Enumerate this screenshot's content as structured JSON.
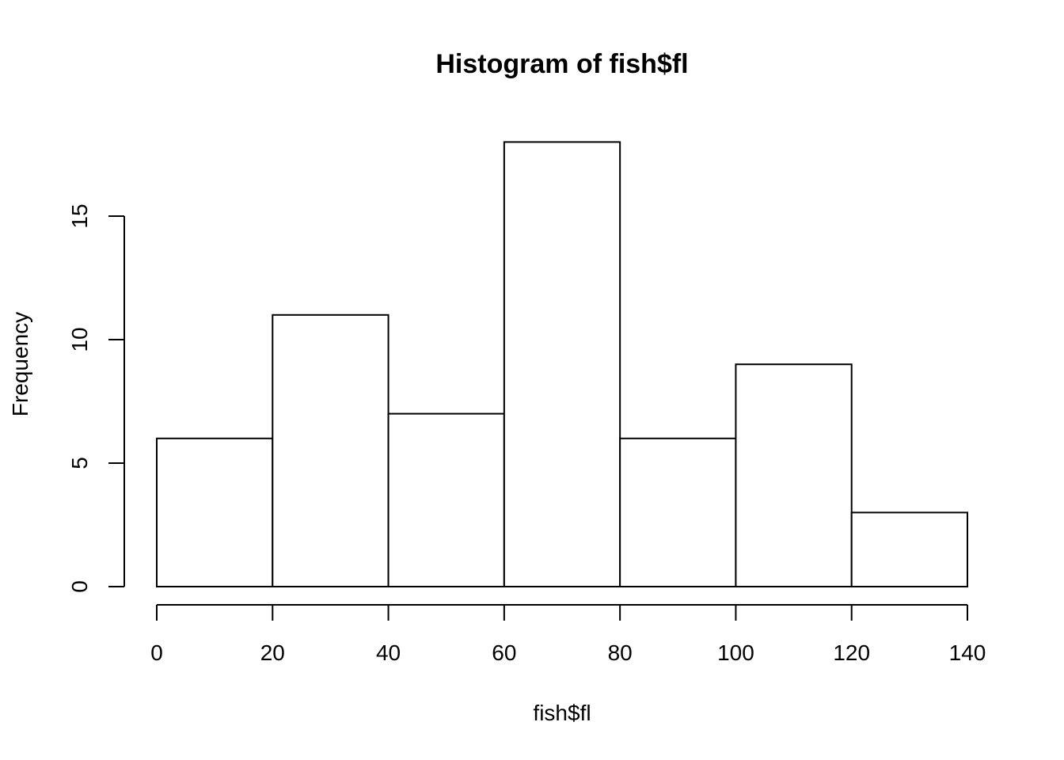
{
  "chart_data": {
    "type": "bar",
    "title": "Histogram of fish$fl",
    "xlabel": "fish$fl",
    "ylabel": "Frequency",
    "bins": [
      {
        "from": 0,
        "to": 20,
        "count": 6
      },
      {
        "from": 20,
        "to": 40,
        "count": 11
      },
      {
        "from": 40,
        "to": 60,
        "count": 7
      },
      {
        "from": 60,
        "to": 80,
        "count": 18
      },
      {
        "from": 80,
        "to": 100,
        "count": 6
      },
      {
        "from": 100,
        "to": 120,
        "count": 9
      },
      {
        "from": 120,
        "to": 140,
        "count": 3
      }
    ],
    "xlim": [
      0,
      140
    ],
    "ylim": [
      0,
      18
    ],
    "x_ticks": [
      0,
      20,
      40,
      60,
      80,
      100,
      120,
      140
    ],
    "y_ticks": [
      0,
      5,
      10,
      15
    ],
    "grid": false,
    "legend": "none"
  }
}
